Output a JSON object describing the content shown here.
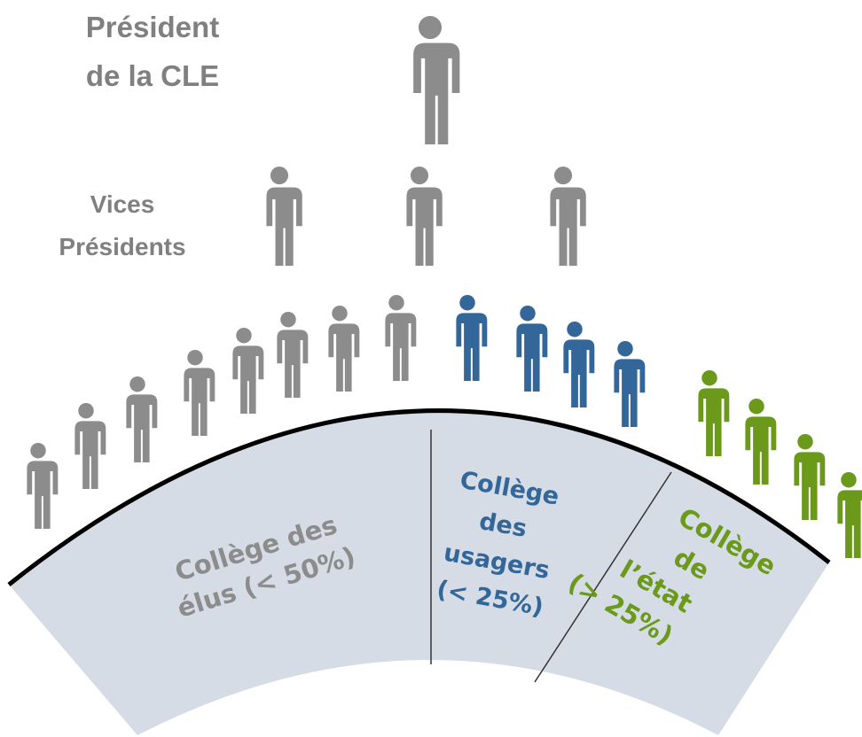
{
  "president": {
    "lines": [
      "Président",
      "de la CLE"
    ]
  },
  "vice_presidents": {
    "lines": [
      "Vices",
      "Présidents"
    ]
  },
  "colleges": [
    {
      "lines": [
        "Collège des",
        "élus (< 50%)"
      ]
    },
    {
      "lines": [
        "Collège",
        "des",
        "usagers",
        "(< 25%)"
      ]
    },
    {
      "lines": [
        "Collège",
        "de",
        "l’état",
        "(> 25%)"
      ]
    }
  ]
}
